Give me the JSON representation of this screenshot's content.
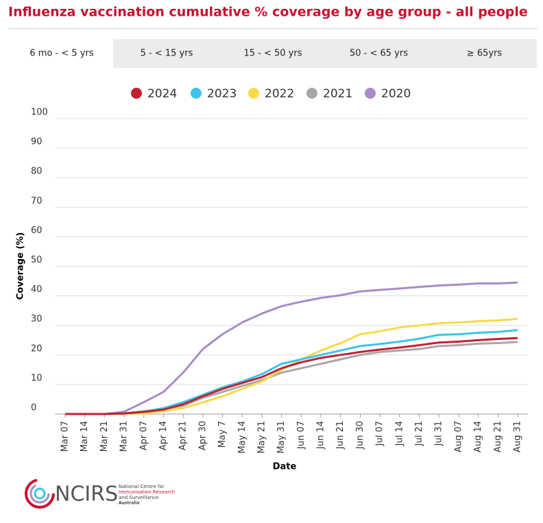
{
  "header": {
    "title": "Influenza vaccination cumulative % coverage by age group - all people"
  },
  "tabs": [
    "6 mo - < 5 yrs",
    "5 - < 15 yrs",
    "15 - < 50 yrs",
    "50 - < 65 yrs",
    "≥ 65yrs"
  ],
  "chart_data": {
    "type": "line",
    "x_label": "Date",
    "y_label": "Coverage (%)",
    "categories": [
      "Mar 07",
      "Mar 14",
      "Mar 21",
      "Mar 31",
      "Apr 07",
      "Apr 14",
      "Apr 21",
      "Apr 30",
      "May 7",
      "May 14",
      "May 21",
      "May 31",
      "Jun 07",
      "Jun 14",
      "Jun 21",
      "Jun 30",
      "Jul 07",
      "Jul 14",
      "Jul 21",
      "Jul 31",
      "Aug 07",
      "Aug 14",
      "Aug 21",
      "Aug 31"
    ],
    "series": [
      {
        "name": "2024",
        "color": "#c0212f",
        "values": [
          0,
          0,
          0,
          0.2,
          0.7,
          1.5,
          3.3,
          6,
          8.5,
          10.5,
          12.5,
          15.5,
          17.5,
          19,
          20,
          21,
          21.8,
          22.5,
          23.3,
          24.2,
          24.5,
          25,
          25.4,
          25.7
        ]
      },
      {
        "name": "2023",
        "color": "#3dc4ea",
        "values": [
          0,
          0,
          0,
          0.2,
          0.8,
          2,
          4,
          6.5,
          9,
          11,
          13.5,
          17,
          18.5,
          20,
          21.5,
          23,
          23.7,
          24.5,
          25.5,
          26.8,
          27,
          27.5,
          27.8,
          28.4
        ]
      },
      {
        "name": "2022",
        "color": "#f9d949",
        "values": [
          0,
          0,
          0,
          0,
          0.2,
          1,
          2,
          4,
          6,
          8.5,
          11,
          15,
          18.5,
          21.5,
          24,
          27,
          28,
          29.3,
          30,
          30.7,
          31,
          31.4,
          31.7,
          32.2
        ]
      },
      {
        "name": "2021",
        "color": "#a7a7a7",
        "values": [
          0,
          0,
          0,
          0.2,
          1,
          1.7,
          2.8,
          5.5,
          7.5,
          9.5,
          11.5,
          14,
          15.5,
          17,
          18.5,
          20,
          21,
          21.5,
          22,
          23,
          23.3,
          23.8,
          24,
          24.4
        ]
      },
      {
        "name": "2020",
        "color": "#a98bc8",
        "values": [
          0,
          0,
          0,
          0.8,
          4,
          7.5,
          14,
          22,
          27,
          31,
          34,
          36.5,
          38,
          39.3,
          40.2,
          41.5,
          42,
          42.5,
          43,
          43.5,
          43.8,
          44.2,
          44.2,
          44.5
        ]
      }
    ],
    "ylim": [
      0,
      100
    ],
    "yticks": [
      0,
      10,
      20,
      30,
      40,
      50,
      60,
      70,
      80,
      90,
      100
    ],
    "grid": true
  },
  "logo": {
    "name": "NCIRS",
    "lines": [
      "National Centre for",
      "Immunisation Research",
      "and Surveillance",
      "Australia"
    ]
  }
}
